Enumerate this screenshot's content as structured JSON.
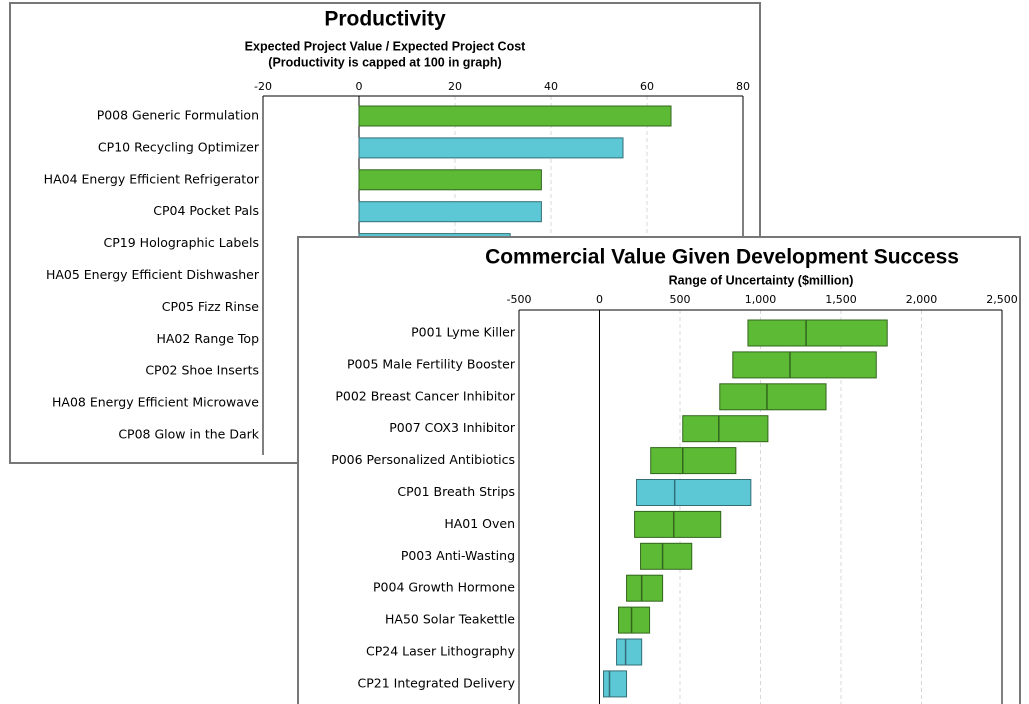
{
  "chart_data": [
    {
      "type": "bar",
      "title": "Productivity",
      "subtitle": [
        "Expected Project Value / Expected Project Cost",
        "(Productivity is capped at 100 in graph)"
      ],
      "categories": [
        "P008 Generic Formulation",
        "CP10 Recycling Optimizer",
        "HA04 Energy Efficient Refrigerator",
        "CP04 Pocket Pals",
        "CP19 Holographic Labels",
        "HA05 Energy Efficient Dishwasher",
        "CP05 Fizz Rinse",
        "HA02 Range Top",
        "CP02 Shoe Inserts",
        "HA08 Energy Efficient Microwave",
        "CP08 Glow in the Dark"
      ],
      "values": [
        65,
        55,
        38,
        38,
        31.5,
        null,
        null,
        null,
        null,
        null,
        null
      ],
      "colors": [
        "#5dba35",
        "#5cc8d6",
        "#5dba35",
        "#5cc8d6",
        "#5cc8d6",
        "#5dba35",
        "#5cc8d6",
        "#5dba35",
        "#5cc8d6",
        "#5dba35",
        "#5cc8d6"
      ],
      "xlim": [
        -20,
        80
      ],
      "xticks": [
        -20,
        0,
        20,
        40,
        60,
        80
      ],
      "grid": true
    },
    {
      "type": "range_bar",
      "title": "Commercial Value Given Development Success",
      "subtitle": [
        "Range of Uncertainty ($million)"
      ],
      "categories": [
        "P001 Lyme Killer",
        "P005 Male Fertility Booster",
        "P002 Breast Cancer Inhibitor",
        "P007 COX3 Inhibitor",
        "P006 Personalized Antibiotics",
        "CP01 Breath Strips",
        "HA01 Oven",
        "P003 Anti-Wasting",
        "P004 Growth Hormone",
        "HA50 Solar Teakettle",
        "CP24 Laser Lithography",
        "CP21 Integrated Delivery"
      ],
      "low": [
        922,
        828,
        747,
        517,
        318,
        230,
        218,
        255,
        168,
        118,
        106,
        25
      ],
      "values": [
        1283,
        1183,
        1040,
        741,
        517,
        467,
        461,
        392,
        262,
        199,
        162,
        62
      ],
      "high": [
        1787,
        1719,
        1407,
        1046,
        847,
        940,
        753,
        573,
        392,
        311,
        262,
        168
      ],
      "colors": [
        "#5dba35",
        "#5dba35",
        "#5dba35",
        "#5dba35",
        "#5dba35",
        "#5cc8d6",
        "#5dba35",
        "#5dba35",
        "#5dba35",
        "#5dba35",
        "#5cc8d6",
        "#5cc8d6"
      ],
      "xlim": [
        -500,
        2500
      ],
      "xticks": [
        -500,
        0,
        500,
        {
          "value": 1000,
          "label": "1,000"
        },
        {
          "value": 1500,
          "label": "1,500"
        },
        {
          "value": 2000,
          "label": "2,000"
        },
        {
          "value": 2500,
          "label": "2,500"
        }
      ],
      "grid": true
    }
  ]
}
